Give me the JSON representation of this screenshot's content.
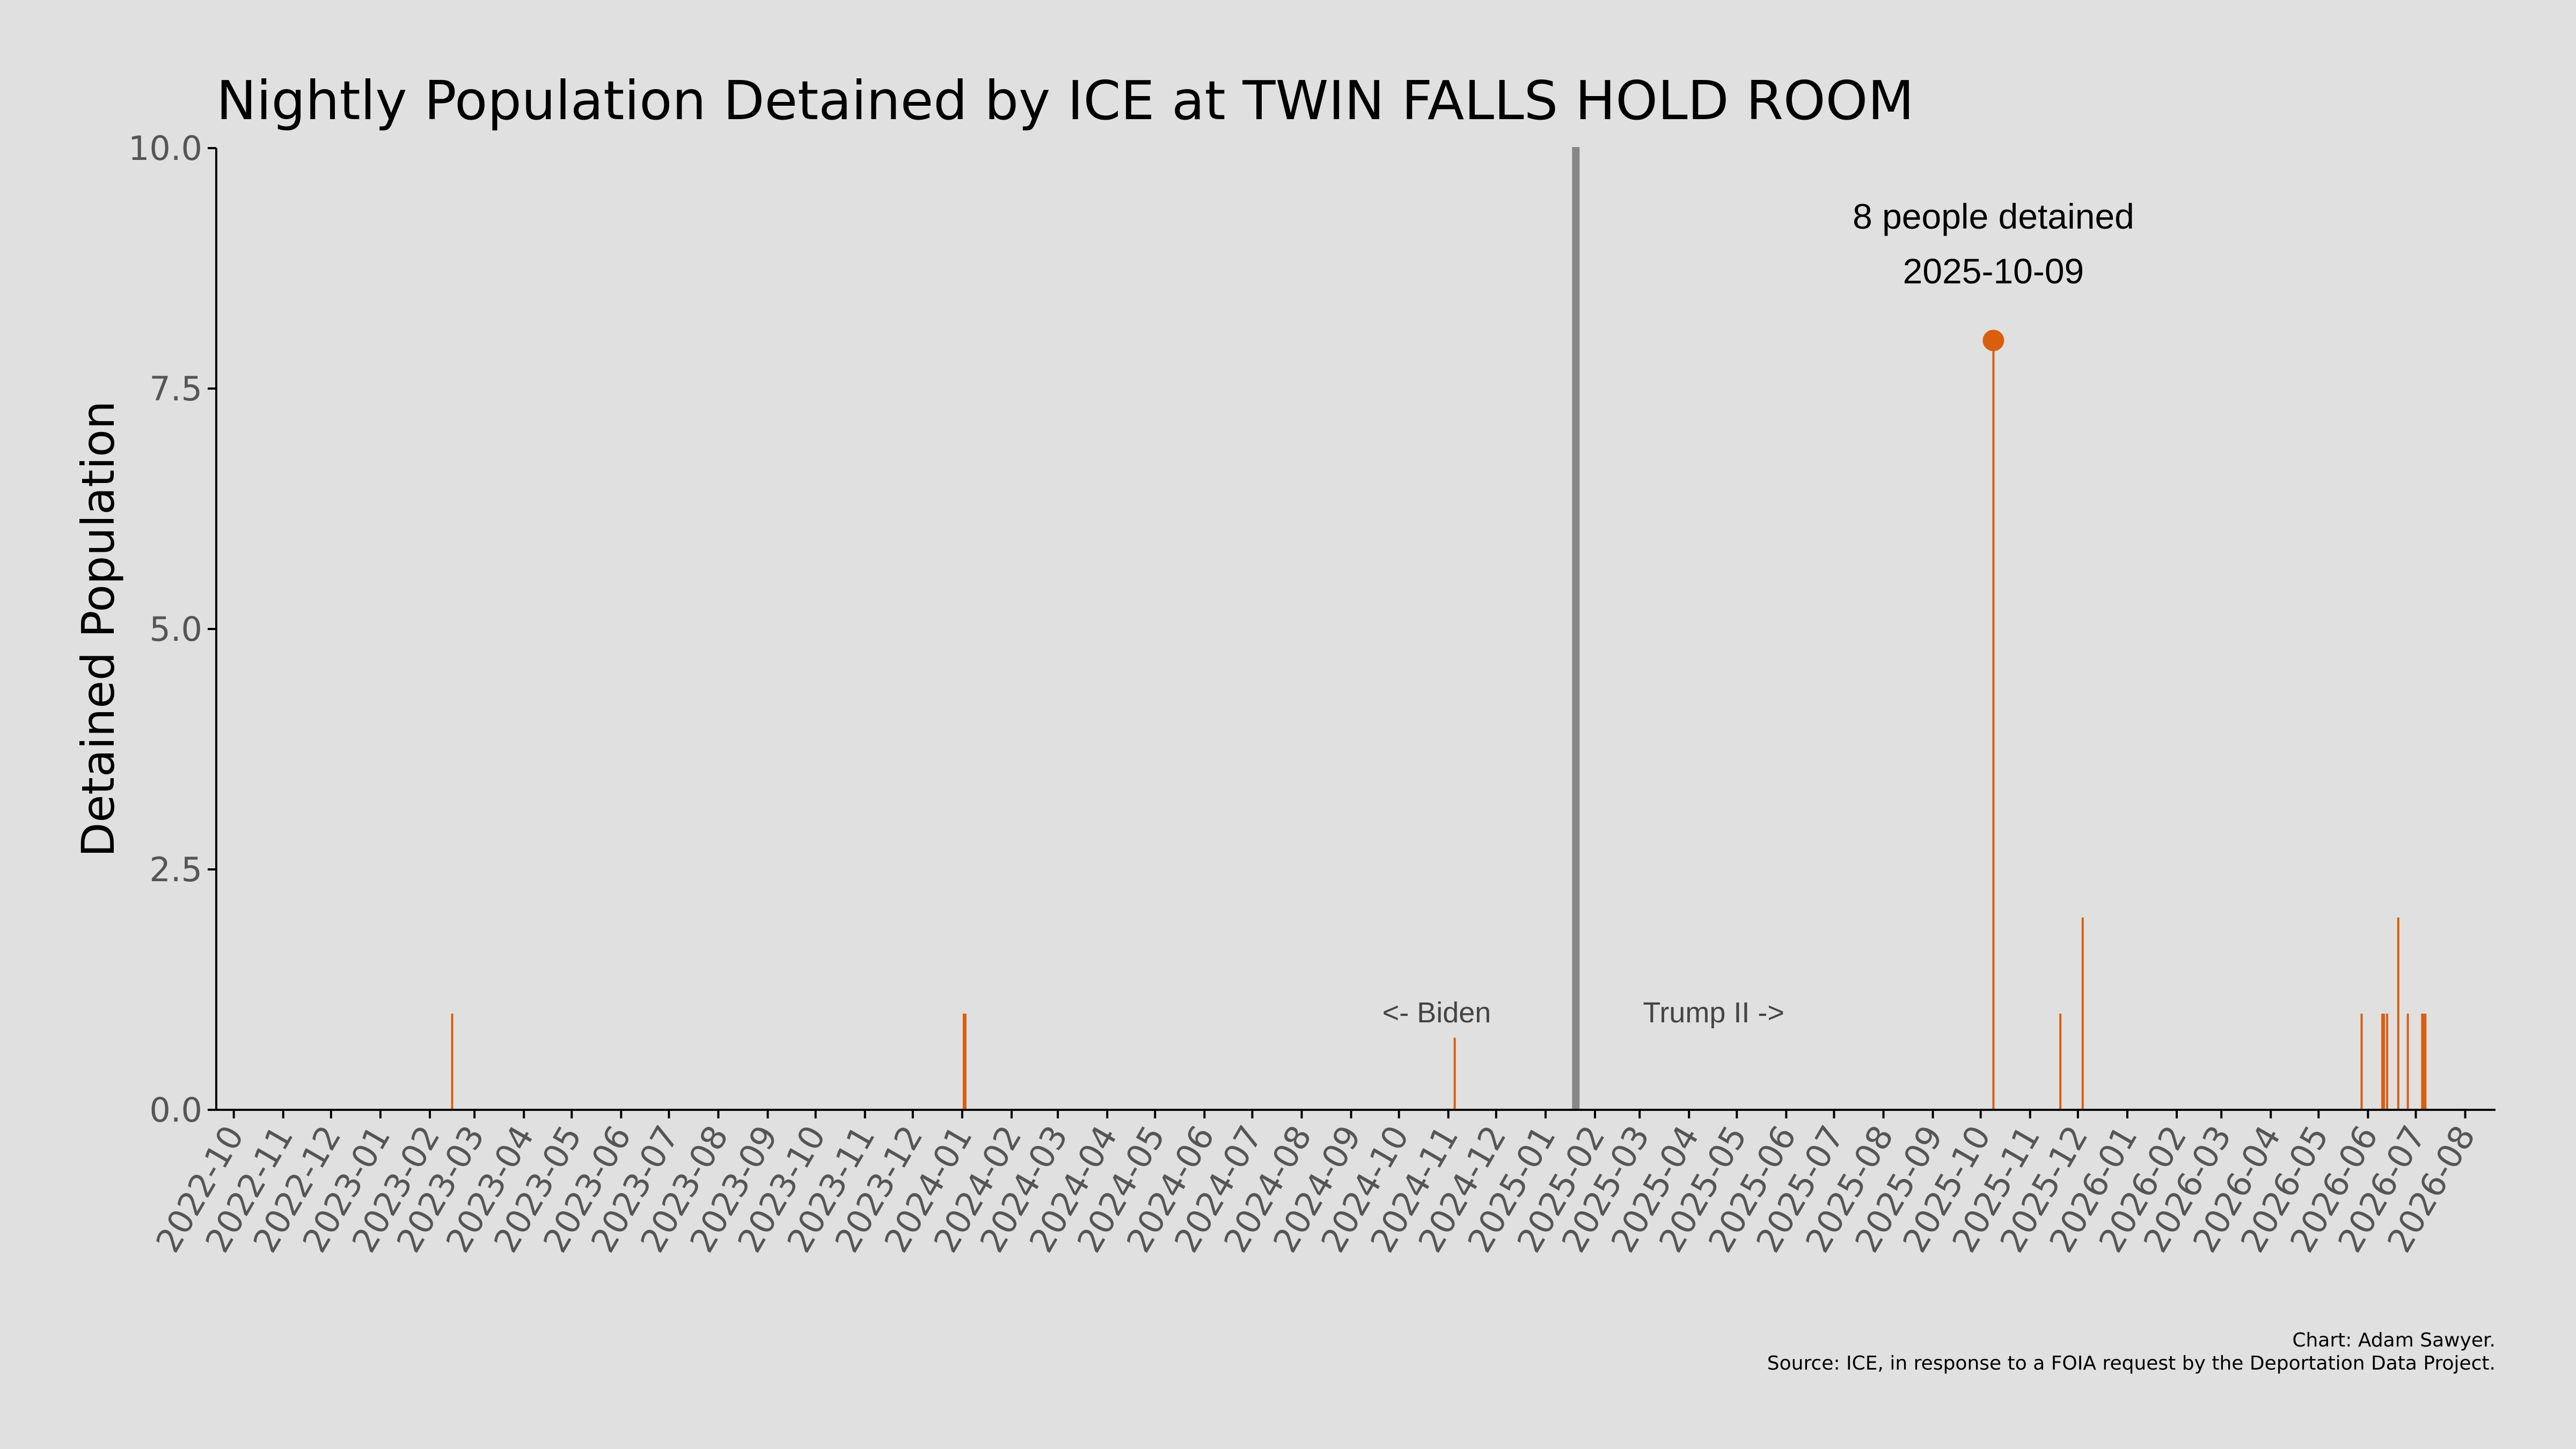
{
  "chart_data": {
    "type": "bar",
    "title": "Nightly Population Detained by ICE at TWIN FALLS HOLD ROOM",
    "xlabel": "",
    "ylabel": "Detained Population",
    "ylim": [
      0,
      10
    ],
    "y_ticks": [
      "0.0",
      "2.5",
      "5.0",
      "7.5",
      "10.0"
    ],
    "x_range": [
      "2022-09-20",
      "2026-08-20"
    ],
    "x_ticks": [
      "2022-10",
      "2022-11",
      "2022-12",
      "2023-01",
      "2023-02",
      "2023-03",
      "2023-04",
      "2023-05",
      "2023-06",
      "2023-07",
      "2023-08",
      "2023-09",
      "2023-10",
      "2023-11",
      "2023-12",
      "2024-01",
      "2024-02",
      "2024-03",
      "2024-04",
      "2024-05",
      "2024-06",
      "2024-07",
      "2024-08",
      "2024-09",
      "2024-10",
      "2024-11",
      "2024-12",
      "2025-01",
      "2025-02",
      "2025-03",
      "2025-04",
      "2025-05",
      "2025-06",
      "2025-07",
      "2025-08",
      "2025-09",
      "2025-10",
      "2025-11",
      "2025-12",
      "2026-01",
      "2026-02",
      "2026-03",
      "2026-04",
      "2026-05",
      "2026-06",
      "2026-07",
      "2026-08"
    ],
    "grid": false,
    "bar_color": "#d95f0e",
    "points": [
      {
        "x": "2023-02-15",
        "y": 1
      },
      {
        "x": "2024-01-02",
        "y": 1
      },
      {
        "x": "2024-01-03",
        "y": 1
      },
      {
        "x": "2024-11-05",
        "y": 0.75
      },
      {
        "x": "2025-10-09",
        "y": 8
      },
      {
        "x": "2025-11-20",
        "y": 1
      },
      {
        "x": "2025-12-04",
        "y": 2
      },
      {
        "x": "2026-05-28",
        "y": 1
      },
      {
        "x": "2026-06-10",
        "y": 1
      },
      {
        "x": "2026-06-11",
        "y": 1
      },
      {
        "x": "2026-06-13",
        "y": 1
      },
      {
        "x": "2026-06-20",
        "y": 2
      },
      {
        "x": "2026-06-26",
        "y": 1
      },
      {
        "x": "2026-07-05",
        "y": 1
      },
      {
        "x": "2026-07-06",
        "y": 1
      },
      {
        "x": "2026-07-07",
        "y": 1
      }
    ],
    "divider": {
      "x": "2025-01-20",
      "color": "#888888"
    },
    "era_labels": {
      "left": "<- Biden",
      "right": "Trump II ->"
    },
    "peak": {
      "x": "2025-10-09",
      "y": 8,
      "line1": "8 people detained",
      "line2": "2025-10-09"
    }
  },
  "credits": {
    "line1": "Chart: Adam Sawyer.",
    "line2": "Source: ICE, in response to a FOIA request by the Deportation Data Project."
  }
}
